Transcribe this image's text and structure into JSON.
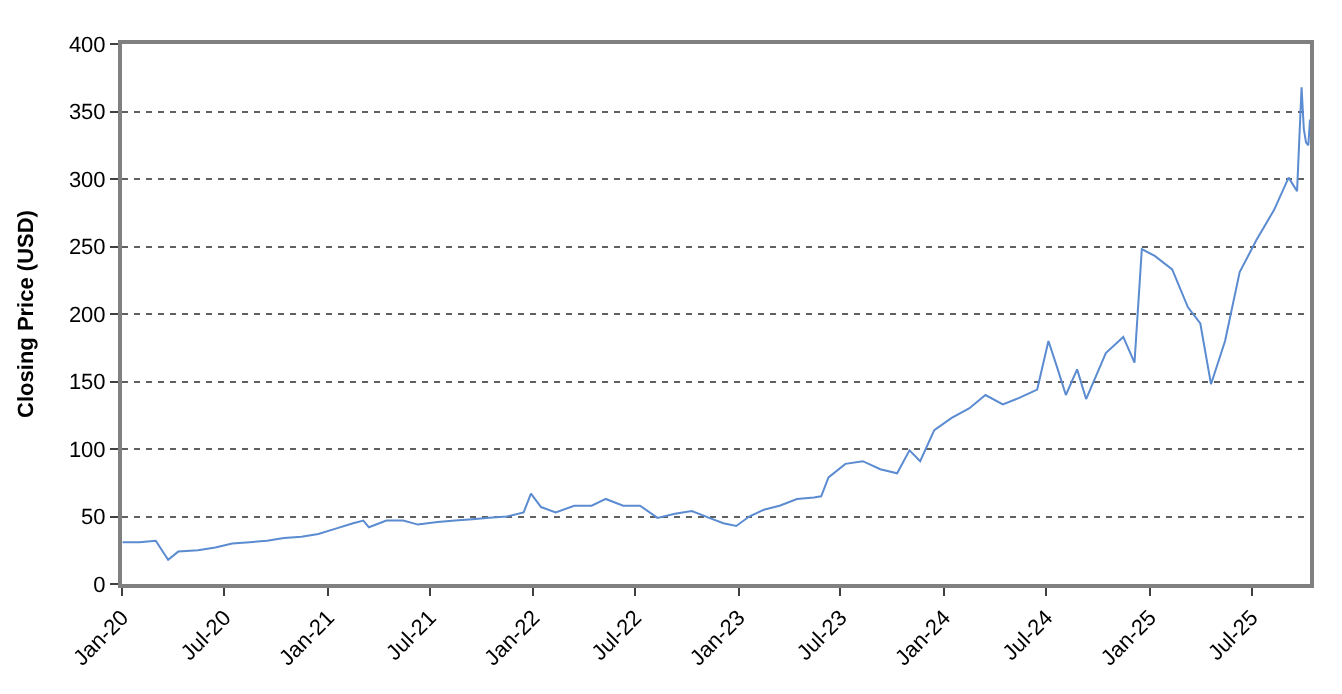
{
  "chart_data": {
    "type": "line",
    "ylabel": "Closing Price (USD)",
    "x": [
      "2020-01-02",
      "2020-02-01",
      "2020-03-01",
      "2020-03-23",
      "2020-04-10",
      "2020-05-15",
      "2020-06-15",
      "2020-07-15",
      "2020-08-15",
      "2020-09-15",
      "2020-10-15",
      "2020-11-15",
      "2020-12-15",
      "2021-01-15",
      "2021-02-15",
      "2021-03-05",
      "2021-03-15",
      "2021-04-15",
      "2021-05-15",
      "2021-06-10",
      "2021-07-15",
      "2021-08-15",
      "2021-09-15",
      "2021-10-15",
      "2021-11-15",
      "2021-12-15",
      "2021-12-28",
      "2022-01-15",
      "2022-02-10",
      "2022-03-15",
      "2022-04-15",
      "2022-05-10",
      "2022-06-10",
      "2022-07-10",
      "2022-08-10",
      "2022-09-10",
      "2022-10-10",
      "2022-11-10",
      "2022-12-05",
      "2022-12-28",
      "2023-01-20",
      "2023-02-15",
      "2023-03-15",
      "2023-04-15",
      "2023-05-15",
      "2023-05-28",
      "2023-06-10",
      "2023-07-10",
      "2023-08-10",
      "2023-09-10",
      "2023-10-10",
      "2023-11-01",
      "2023-11-20",
      "2023-12-15",
      "2024-01-15",
      "2024-02-15",
      "2024-03-15",
      "2024-04-15",
      "2024-05-15",
      "2024-06-15",
      "2024-07-05",
      "2024-07-20",
      "2024-08-05",
      "2024-08-25",
      "2024-09-10",
      "2024-10-15",
      "2024-11-15",
      "2024-12-05",
      "2024-12-18",
      "2025-01-10",
      "2025-02-10",
      "2025-03-10",
      "2025-04-01",
      "2025-04-20",
      "2025-05-15",
      "2025-06-10",
      "2025-07-10",
      "2025-08-10",
      "2025-09-05",
      "2025-09-20",
      "2025-09-28",
      "2025-10-02",
      "2025-10-06",
      "2025-10-10",
      "2025-10-13"
    ],
    "series": [
      {
        "color": "#5b8bd0",
        "values": [
          31,
          31,
          32,
          18,
          24,
          25,
          27,
          30,
          31,
          32,
          34,
          35,
          37,
          41,
          45,
          47,
          42,
          47,
          47,
          44,
          46,
          47,
          48,
          49,
          50,
          53,
          67,
          57,
          53,
          58,
          58,
          63,
          58,
          58,
          49,
          52,
          54,
          49,
          45,
          43,
          50,
          55,
          58,
          63,
          64,
          65,
          79,
          89,
          91,
          85,
          82,
          99,
          91,
          114,
          123,
          130,
          140,
          133,
          138,
          144,
          180,
          161,
          140,
          159,
          137,
          171,
          183,
          164,
          248,
          243,
          233,
          205,
          193,
          148,
          180,
          231,
          255,
          277,
          301,
          291,
          368,
          337,
          327,
          325,
          344
        ]
      }
    ],
    "ylim": [
      0,
      400
    ],
    "yticks": [
      0,
      50,
      100,
      150,
      200,
      250,
      300,
      350,
      400
    ],
    "xlim": [
      "2020-01-01",
      "2025-10-13"
    ],
    "xticks": [
      {
        "value": "2020-01-01",
        "label": "Jan-20"
      },
      {
        "value": "2020-07-01",
        "label": "Jul-20"
      },
      {
        "value": "2021-01-01",
        "label": "Jan-21"
      },
      {
        "value": "2021-07-01",
        "label": "Jul-21"
      },
      {
        "value": "2022-01-01",
        "label": "Jan-22"
      },
      {
        "value": "2022-07-01",
        "label": "Jul-22"
      },
      {
        "value": "2023-01-01",
        "label": "Jan-23"
      },
      {
        "value": "2023-07-01",
        "label": "Jul-23"
      },
      {
        "value": "2024-01-01",
        "label": "Jan-24"
      },
      {
        "value": "2024-07-01",
        "label": "Jul-24"
      },
      {
        "value": "2025-01-01",
        "label": "Jan-25"
      },
      {
        "value": "2025-07-01",
        "label": "Jul-25"
      }
    ],
    "grid": "y",
    "marker": "none",
    "line_style": "solid"
  }
}
